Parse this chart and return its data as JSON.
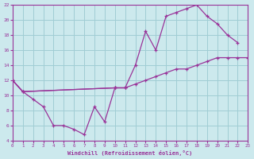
{
  "xlabel": "Windchill (Refroidissement éolien,°C)",
  "xlim": [
    0,
    23
  ],
  "ylim": [
    4,
    22
  ],
  "xticks": [
    0,
    1,
    2,
    3,
    4,
    5,
    6,
    7,
    8,
    9,
    10,
    11,
    12,
    13,
    14,
    15,
    16,
    17,
    18,
    19,
    20,
    21,
    22,
    23
  ],
  "yticks": [
    4,
    6,
    8,
    10,
    12,
    14,
    16,
    18,
    20,
    22
  ],
  "background_color": "#cce9ed",
  "grid_color": "#a0cdd4",
  "line_color": "#993399",
  "curve1_x": [
    0,
    1,
    2,
    3,
    4,
    5,
    6,
    7,
    8,
    9,
    10,
    11
  ],
  "curve1_y": [
    12,
    10.5,
    9.5,
    8.5,
    6.0,
    6.0,
    5.5,
    4.8,
    8.5,
    6.5,
    11.0,
    11.0
  ],
  "curve2_x": [
    0,
    1,
    10,
    11,
    12,
    13,
    14,
    15,
    16,
    17,
    18,
    19,
    20,
    21,
    22
  ],
  "curve2_y": [
    12,
    10.5,
    11.0,
    11.0,
    14.0,
    18.5,
    16.0,
    20.5,
    21.0,
    21.5,
    22.0,
    20.5,
    19.5,
    18.0,
    17.0
  ],
  "curve3_x": [
    0,
    1,
    10,
    11,
    12,
    13,
    14,
    15,
    16,
    17,
    18,
    19,
    20,
    21,
    22,
    23
  ],
  "curve3_y": [
    12,
    10.5,
    11.0,
    11.0,
    11.5,
    12.0,
    12.5,
    13.0,
    13.5,
    13.5,
    14.0,
    14.5,
    15.0,
    15.0,
    15.0,
    15.0
  ]
}
